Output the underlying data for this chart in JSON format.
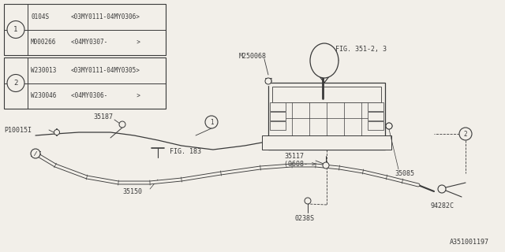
{
  "background_color": "#f2efe9",
  "line_color": "#3a3a3a",
  "watermark": "A351001197",
  "table1_rows": [
    [
      "0104S",
      "<03MY0111-04MY0306>"
    ],
    [
      "M000266",
      "<04MY0307-        >"
    ]
  ],
  "table2_rows": [
    [
      "W230013",
      "<03MY0111-04MY0305>"
    ],
    [
      "W230046",
      "<04MY0306-        >"
    ]
  ],
  "fig_bottom_right": "A351001197"
}
